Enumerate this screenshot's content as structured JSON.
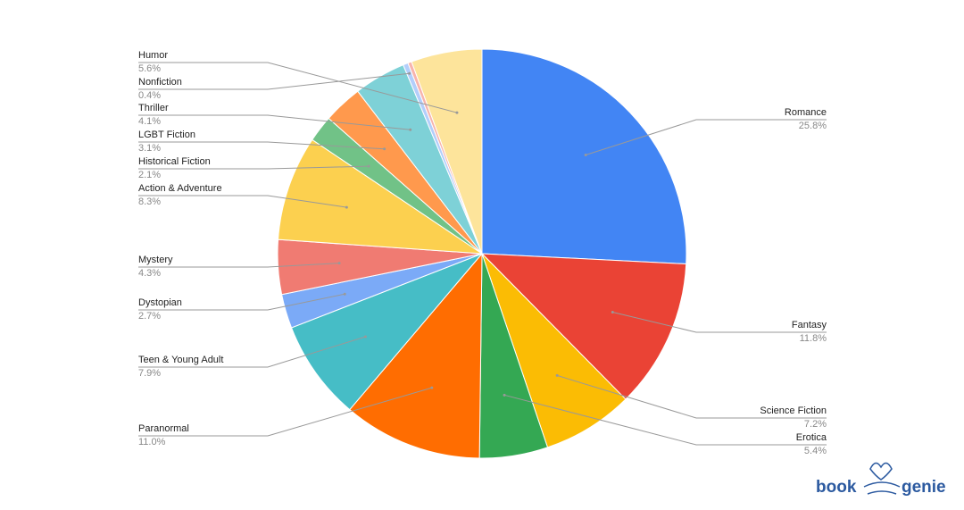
{
  "chart_data": {
    "type": "pie",
    "categories": [
      "Romance",
      "Fantasy",
      "Science Fiction",
      "Erotica",
      "Paranormal",
      "Teen & Young Adult",
      "Dystopian",
      "Mystery",
      "Action & Adventure",
      "Historical Fiction",
      "LGBT Fiction",
      "Thriller",
      "Nonfiction",
      null,
      "Humor"
    ],
    "values": [
      25.8,
      11.8,
      7.2,
      5.4,
      11.0,
      7.9,
      2.7,
      4.3,
      8.3,
      2.1,
      3.1,
      4.1,
      0.4,
      0.3,
      5.6
    ],
    "value_labels": [
      "25.8%",
      "11.8%",
      "7.2%",
      "5.4%",
      "11.0%",
      "7.9%",
      "2.7%",
      "4.3%",
      "8.3%",
      "2.1%",
      "3.1%",
      "4.1%",
      "0.4%",
      null,
      "5.6%"
    ],
    "colors": [
      "#4285f4",
      "#ea4335",
      "#fbbc04",
      "#34a853",
      "#ff6d01",
      "#46bdc6",
      "#7baaf7",
      "#f07b72",
      "#fcd04f",
      "#71c287",
      "#ff994d",
      "#7ed1d7",
      "#b3cefb",
      "#f7b4ae",
      "#fde49b"
    ]
  },
  "logo": {
    "left": "book",
    "right": "genie"
  }
}
